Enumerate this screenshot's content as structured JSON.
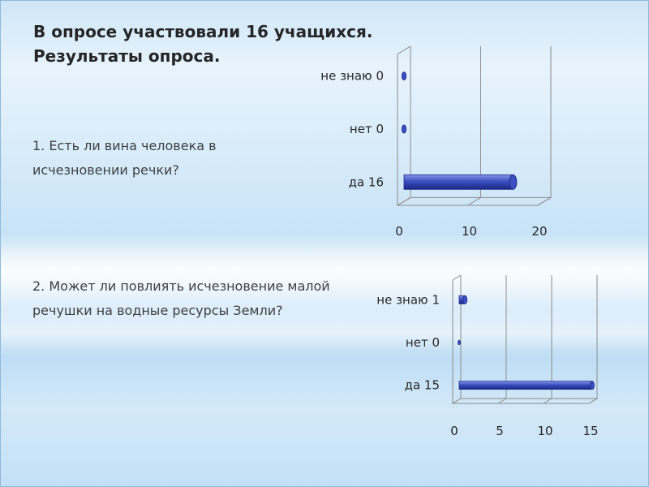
{
  "slide": {
    "title_line1": "В опросе участвовали 16 учащихся.",
    "title_line2": "Результаты опроса."
  },
  "questions": [
    {
      "line1": "1. Есть ли вина человека  в",
      "line2": "исчезновении речки?"
    },
    {
      "line1": "2. Может ли повлиять исчезновение малой",
      "line2": "речушки на водные ресурсы Земли?"
    }
  ],
  "colors": {
    "bar_fill": "#3b4fc0",
    "bar_dark": "#1c2784",
    "bar_light": "#8796ea",
    "grid": "#8c8c8c"
  },
  "chart_data": [
    {
      "type": "bar",
      "orientation": "horizontal",
      "style": "3d-cylinder",
      "categories": [
        "да 16",
        "нет 0",
        "не знаю 0"
      ],
      "values": [
        16,
        0,
        0
      ],
      "xlim": [
        0,
        20
      ],
      "xticks": [
        "0",
        "10",
        "20"
      ],
      "grid": true,
      "title": "",
      "xlabel": "",
      "ylabel": ""
    },
    {
      "type": "bar",
      "orientation": "horizontal",
      "style": "3d-cylinder",
      "categories": [
        "да 15",
        "нет 0",
        "не знаю 1"
      ],
      "values": [
        15,
        0,
        1
      ],
      "xlim": [
        0,
        15
      ],
      "xticks": [
        "0",
        "5",
        "10",
        "15"
      ],
      "grid": true,
      "title": "",
      "xlabel": "",
      "ylabel": ""
    }
  ]
}
